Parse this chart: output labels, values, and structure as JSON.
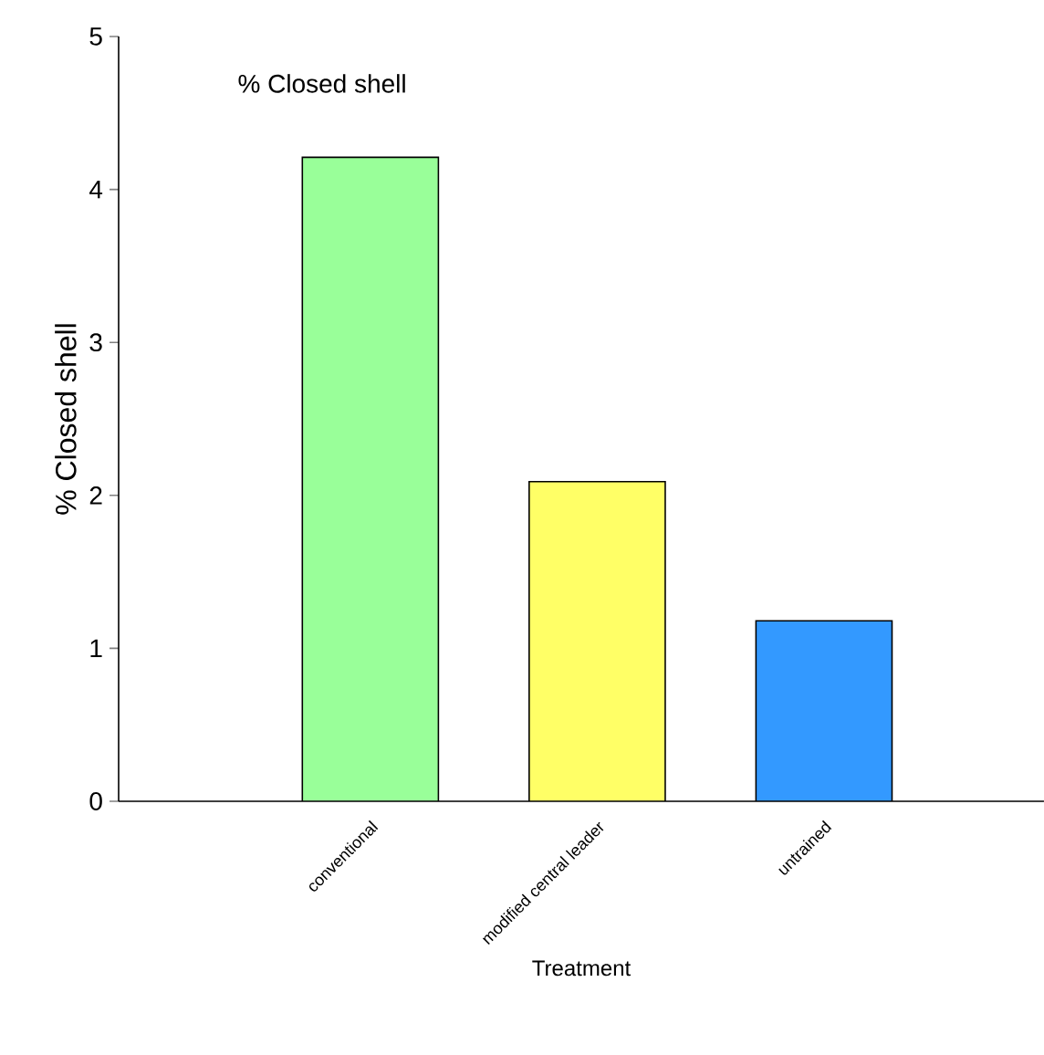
{
  "chart_data": {
    "type": "bar",
    "title": "% Closed shell",
    "xlabel": "Treatment",
    "ylabel": "% Closed shell",
    "categories": [
      "conventional",
      "modified central leader",
      "untrained"
    ],
    "values": [
      4.21,
      2.09,
      1.18
    ],
    "colors": [
      "#99ff99",
      "#ffff66",
      "#3399ff"
    ],
    "ylim": [
      0,
      5
    ],
    "yticks": [
      0,
      1,
      2,
      3,
      4,
      5
    ],
    "grid": false
  }
}
